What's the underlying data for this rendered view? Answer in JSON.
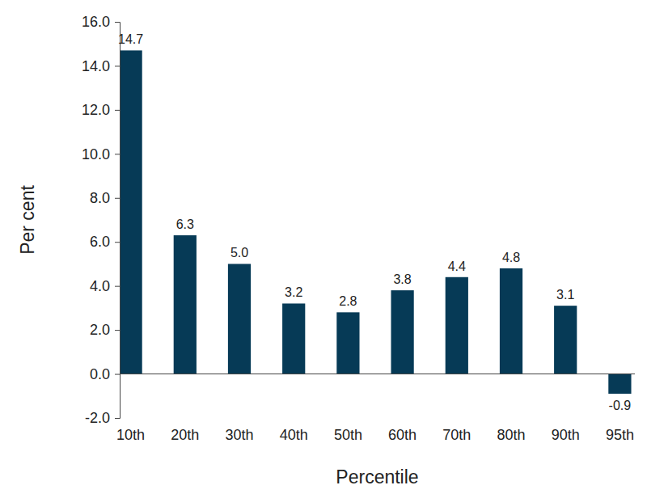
{
  "chart_data": {
    "type": "bar",
    "x_label": "Percentile",
    "y_label": "Per cent",
    "categories": [
      "10th",
      "20th",
      "30th",
      "40th",
      "50th",
      "60th",
      "70th",
      "80th",
      "90th",
      "95th"
    ],
    "values": [
      14.7,
      6.3,
      5.0,
      3.2,
      2.8,
      3.8,
      4.4,
      4.8,
      3.1,
      -0.9
    ],
    "value_labels": [
      "14.7",
      "6.3",
      "5.0",
      "3.2",
      "2.8",
      "3.8",
      "4.4",
      "4.8",
      "3.1",
      "-0.9"
    ],
    "color": "#063a56",
    "ylim": [
      -2,
      16
    ],
    "yticks": [
      {
        "value": -2,
        "label": "-2.0"
      },
      {
        "value": 0,
        "label": "0.0"
      },
      {
        "value": 2,
        "label": "2.0"
      },
      {
        "value": 4,
        "label": "4.0"
      },
      {
        "value": 6,
        "label": "6.0"
      },
      {
        "value": 8,
        "label": "8.0"
      },
      {
        "value": 10,
        "label": "10.0"
      },
      {
        "value": 12,
        "label": "12.0"
      },
      {
        "value": 14,
        "label": "14.0"
      },
      {
        "value": 16,
        "label": "16.0"
      }
    ],
    "grid": false,
    "data_labels": true
  }
}
